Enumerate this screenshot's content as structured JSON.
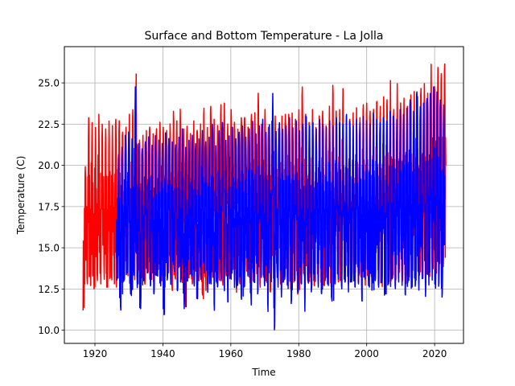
{
  "chart_data": {
    "type": "line",
    "title": "Surface and Bottom Temperature -  La Jolla",
    "xlabel": "Time",
    "ylabel": "Temperature (C)",
    "xlim": [
      1911,
      2028.5
    ],
    "ylim": [
      9.2,
      27.2
    ],
    "grid": true,
    "x_ticks": [
      1920,
      1940,
      1960,
      1980,
      2000,
      2020
    ],
    "x_tick_labels": [
      "1920",
      "1940",
      "1960",
      "1980",
      "2000",
      "2020"
    ],
    "y_ticks": [
      10.0,
      12.5,
      15.0,
      17.5,
      20.0,
      22.5,
      25.0
    ],
    "y_tick_labels": [
      "10.0",
      "12.5",
      "15.0",
      "17.5",
      "20.0",
      "22.5",
      "25.0"
    ],
    "series": [
      {
        "color": "#ff0000",
        "x_start": 1916.5,
        "x_end": 2023.3,
        "annual_min": [
          11.2,
          12.6,
          12.5,
          12.3,
          12.8,
          12.6,
          12.9,
          12.4,
          13.0,
          12.6,
          13.2,
          12.7,
          12.9,
          13.1,
          12.4,
          12.8,
          13.3,
          13.0,
          12.6,
          13.4,
          12.9,
          13.2,
          13.5,
          12.8,
          13.1,
          13.3,
          12.4,
          12.9,
          13.6,
          12.7,
          11.2,
          13.0,
          12.6,
          13.4,
          12.9,
          11.9,
          12.2,
          12.6,
          13.0,
          13.4,
          12.8,
          12.5,
          13.1,
          12.9,
          13.5,
          12.1,
          12.6,
          13.0,
          13.4,
          12.7,
          12.9,
          13.2,
          12.4,
          13.0,
          12.7,
          12.1,
          12.9,
          13.3,
          12.6,
          12.8,
          13.0,
          12.3,
          12.9,
          12.0,
          12.6,
          13.1,
          12.8,
          13.0,
          12.5,
          13.2,
          12.9,
          12.7,
          13.3,
          12.6,
          13.0,
          12.8,
          12.4,
          13.1,
          12.6,
          12.9,
          13.3,
          12.7,
          13.0,
          12.5,
          12.8,
          13.2,
          12.9,
          12.6,
          12.4,
          13.1,
          12.7,
          13.0,
          12.8,
          13.3,
          12.9,
          12.6,
          13.0,
          13.4,
          12.8,
          13.1,
          12.9,
          13.3,
          13.0,
          13.5,
          13.2,
          13.8,
          13.6
        ],
        "annual_max": [
          20.1,
          23.1,
          22.8,
          22.5,
          23.3,
          22.7,
          22.4,
          22.9,
          22.6,
          23.0,
          22.9,
          22.2,
          22.5,
          23.3,
          23.6,
          25.8,
          21.7,
          22.0,
          22.3,
          22.5,
          22.1,
          22.4,
          22.8,
          22.5,
          22.3,
          22.7,
          23.5,
          22.9,
          23.6,
          22.4,
          22.6,
          22.1,
          22.9,
          22.3,
          22.7,
          23.7,
          22.5,
          23.8,
          23.0,
          22.6,
          23.9,
          24.0,
          22.7,
          23.6,
          22.8,
          22.4,
          23.1,
          23.1,
          22.5,
          23.3,
          23.4,
          24.6,
          22.7,
          23.6,
          22.5,
          22.9,
          23.2,
          22.4,
          23.2,
          23.3,
          23.3,
          23.4,
          23.0,
          23.6,
          25.0,
          23.3,
          22.8,
          23.6,
          22.5,
          23.2,
          23.5,
          22.6,
          23.8,
          25.1,
          23.5,
          23.6,
          24.9,
          23.2,
          23.0,
          23.4,
          23.7,
          23.1,
          23.9,
          24.0,
          23.5,
          23.6,
          24.1,
          23.8,
          24.4,
          24.2,
          25.4,
          23.6,
          25.2,
          24.0,
          24.3,
          23.8,
          24.5,
          24.7,
          24.4,
          24.9,
          25.2,
          24.6,
          26.4,
          25.0,
          26.2,
          25.8,
          26.4
        ]
      },
      {
        "color": "#0000ff",
        "x_start": 1926.3,
        "x_end": 2023.0,
        "annual_min": [
          13.0,
          11.2,
          12.8,
          13.3,
          12.0,
          13.1,
          12.4,
          11.1,
          12.9,
          13.3,
          12.6,
          12.0,
          13.2,
          12.5,
          10.7,
          13.0,
          12.6,
          13.4,
          12.2,
          12.9,
          11.1,
          12.8,
          13.3,
          12.5,
          11.7,
          12.9,
          13.3,
          12.1,
          12.6,
          11.0,
          12.5,
          12.8,
          12.2,
          11.5,
          12.9,
          12.4,
          12.7,
          11.8,
          12.5,
          13.1,
          11.3,
          12.7,
          12.2,
          13.0,
          12.5,
          10.9,
          12.7,
          10.0,
          12.4,
          11.8,
          12.9,
          12.3,
          11.6,
          12.8,
          12.1,
          12.6,
          10.9,
          12.7,
          12.3,
          12.9,
          12.4,
          12.0,
          12.8,
          12.5,
          11.7,
          12.6,
          12.9,
          12.3,
          12.7,
          12.1,
          12.8,
          12.4,
          12.6,
          11.6,
          12.9,
          12.5,
          12.2,
          12.8,
          12.4,
          12.7,
          12.0,
          12.6,
          12.9,
          12.3,
          12.7,
          12.5,
          11.9,
          12.8,
          12.4,
          12.6,
          12.2,
          12.9,
          11.8,
          12.5,
          12.8,
          12.3,
          12.6,
          12.0
        ],
        "annual_max": [
          20.8,
          21.3,
          22.0,
          22.2,
          21.8,
          25.0,
          21.5,
          21.2,
          21.6,
          21.9,
          21.4,
          22.0,
          21.7,
          21.5,
          22.2,
          21.8,
          21.6,
          21.4,
          21.9,
          22.4,
          21.3,
          21.7,
          22.0,
          21.5,
          21.8,
          22.3,
          21.6,
          21.9,
          22.7,
          21.4,
          22.3,
          22.8,
          21.7,
          22.0,
          22.5,
          21.8,
          22.2,
          22.6,
          21.9,
          22.4,
          22.9,
          22.1,
          22.6,
          23.0,
          22.2,
          22.7,
          24.6,
          22.3,
          22.8,
          22.4,
          22.6,
          23.1,
          22.5,
          22.9,
          22.3,
          22.7,
          23.2,
          22.6,
          22.8,
          22.4,
          23.0,
          22.7,
          22.5,
          22.9,
          22.6,
          23.1,
          22.8,
          22.7,
          23.3,
          22.9,
          22.6,
          23.0,
          22.8,
          23.2,
          22.9,
          22.7,
          23.4,
          23.0,
          22.8,
          23.1,
          22.9,
          23.5,
          23.2,
          23.0,
          23.6,
          23.3,
          23.7,
          24.2,
          23.5,
          24.7,
          23.8,
          24.0,
          24.3,
          24.6,
          25.0,
          24.7,
          24.2,
          23.9
        ]
      }
    ]
  }
}
